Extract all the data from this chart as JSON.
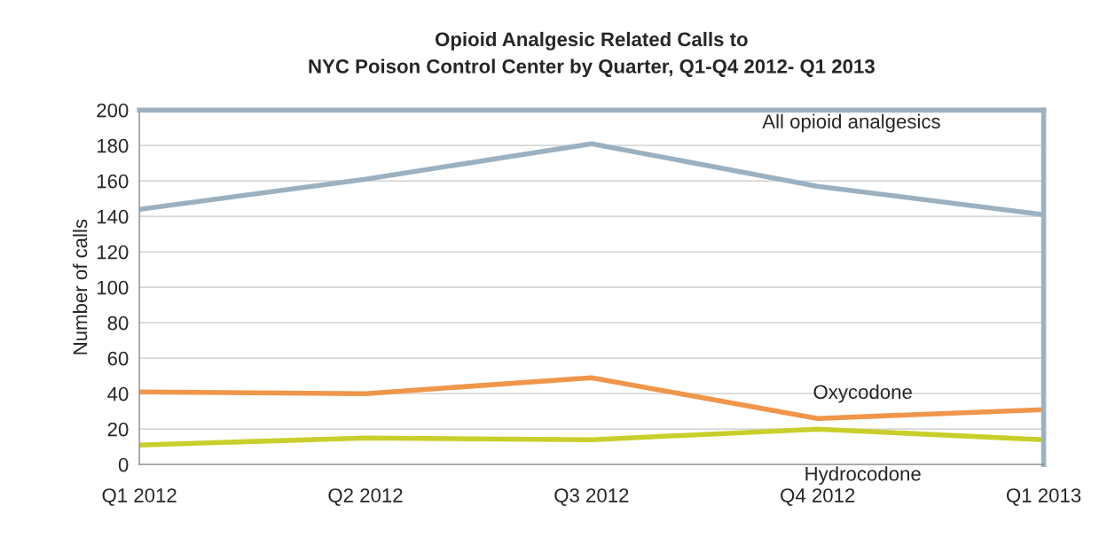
{
  "chart_data": {
    "type": "line",
    "title": "Opioid Analgesic Related Calls to\nNYC Poison Control Center by Quarter, Q1-Q4 2012- Q1 2013",
    "ylabel": "Number of calls",
    "categories": [
      "Q1 2012",
      "Q2 2012",
      "Q3 2012",
      "Q4 2012",
      "Q1 2013"
    ],
    "series": [
      {
        "name": "All opioid analgesics",
        "color": "#9bb1c1",
        "values": [
          144,
          161,
          181,
          157,
          141
        ]
      },
      {
        "name": "Oxycodone",
        "color": "#f0964a",
        "values": [
          41,
          40,
          49,
          26,
          31
        ]
      },
      {
        "name": "Hydrocodone",
        "color": "#c9cf2a",
        "values": [
          11,
          15,
          14,
          20,
          14
        ]
      }
    ],
    "ylim": [
      0,
      200
    ],
    "yticks": [
      0,
      20,
      40,
      60,
      80,
      100,
      120,
      140,
      160,
      180,
      200
    ],
    "grid": "y",
    "legend": false,
    "marker": "none",
    "line_style": "solid"
  }
}
